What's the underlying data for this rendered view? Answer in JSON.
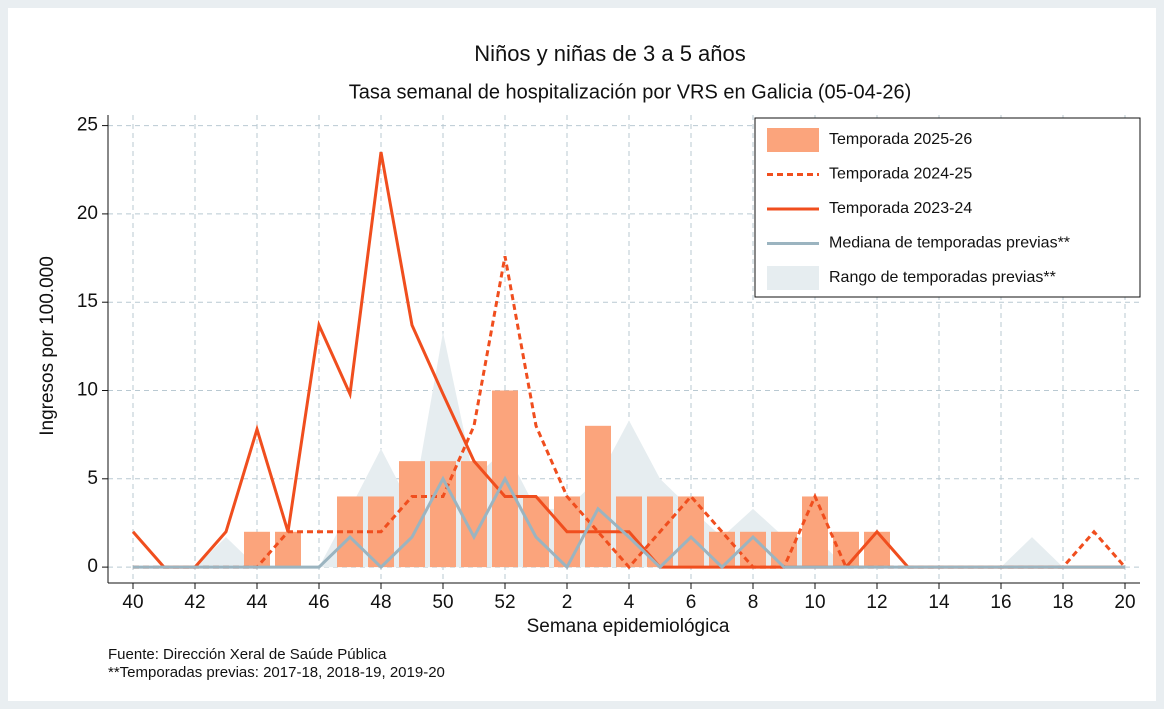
{
  "chart_data": {
    "type": "line",
    "title": "Niños y niñas de 3 a 5 años",
    "subtitle": "Tasa semanal de hospitalización por VRS en Galicia (05-04-26)",
    "y_label": "Ingresos por 100.000",
    "x_label": "Semana epidemiológica",
    "notes": [
      "Fuente: Dirección Xeral de Saúde Pública",
      "**Temporadas previas: 2017-18, 2018-19, 2019-20"
    ],
    "categories": [
      "40",
      null,
      "42",
      null,
      "44",
      null,
      "46",
      null,
      "48",
      null,
      "50",
      null,
      "52",
      null,
      "2",
      null,
      "4",
      null,
      "6",
      null,
      "8",
      null,
      "10",
      null,
      "12",
      null,
      "14",
      null,
      "16",
      null,
      "18",
      null,
      "20"
    ],
    "ylim": [
      -0.9,
      25.6
    ],
    "yticks": [
      0,
      5,
      10,
      15,
      20,
      25
    ],
    "grid": true,
    "legend": "top-right",
    "series": [
      {
        "name": "Temporada 2025-26",
        "kind": "bar",
        "color": "#fba47c",
        "values": [
          0,
          0,
          0,
          0,
          2,
          2,
          0,
          4,
          4,
          6,
          6,
          6,
          10,
          4,
          4,
          8,
          4,
          4,
          4,
          2,
          2,
          2,
          4,
          2,
          2,
          0,
          null,
          null,
          null,
          null,
          null,
          null,
          null
        ]
      },
      {
        "name": "Temporada 2024-25",
        "kind": "line",
        "dashed": true,
        "color": "#f04e1e",
        "values": [
          0,
          0,
          0,
          0,
          0,
          2,
          2,
          2,
          2,
          4,
          4,
          8,
          17.6,
          8,
          4,
          2,
          0,
          2,
          4,
          2,
          0,
          0,
          4,
          0,
          0,
          0,
          0,
          0,
          0,
          0,
          0,
          2,
          0
        ]
      },
      {
        "name": "Temporada 2023-24",
        "kind": "line",
        "dashed": false,
        "color": "#f04e1e",
        "values": [
          2,
          0,
          0,
          2,
          7.8,
          2,
          13.7,
          9.8,
          23.5,
          13.7,
          9.8,
          6,
          4,
          4,
          2,
          2,
          2,
          0,
          0,
          0,
          0,
          0,
          0,
          0,
          2,
          0,
          0,
          0,
          0,
          0,
          0,
          0,
          0
        ]
      },
      {
        "name": "Mediana de temporadas previas**",
        "kind": "line",
        "dashed": false,
        "color": "#9bb4c0",
        "values": [
          0,
          0,
          0,
          0,
          0,
          0,
          0,
          1.7,
          0,
          1.7,
          5,
          1.7,
          5,
          1.7,
          0,
          3.3,
          1.7,
          0,
          1.7,
          0,
          1.7,
          0,
          0,
          0,
          0,
          0,
          0,
          0,
          0,
          0,
          0,
          0,
          0
        ]
      },
      {
        "name": "Rango de temporadas previas**",
        "kind": "area",
        "color": "#e6edf0",
        "values": [
          0,
          0,
          0,
          1.7,
          0,
          0,
          0,
          3.3,
          6.7,
          3.3,
          13.3,
          5,
          6.7,
          3.3,
          3.3,
          5,
          8.3,
          5,
          3.3,
          1.7,
          3.3,
          1.7,
          1.7,
          0,
          0,
          0,
          0,
          0,
          0,
          1.7,
          0,
          0,
          0
        ]
      }
    ]
  }
}
